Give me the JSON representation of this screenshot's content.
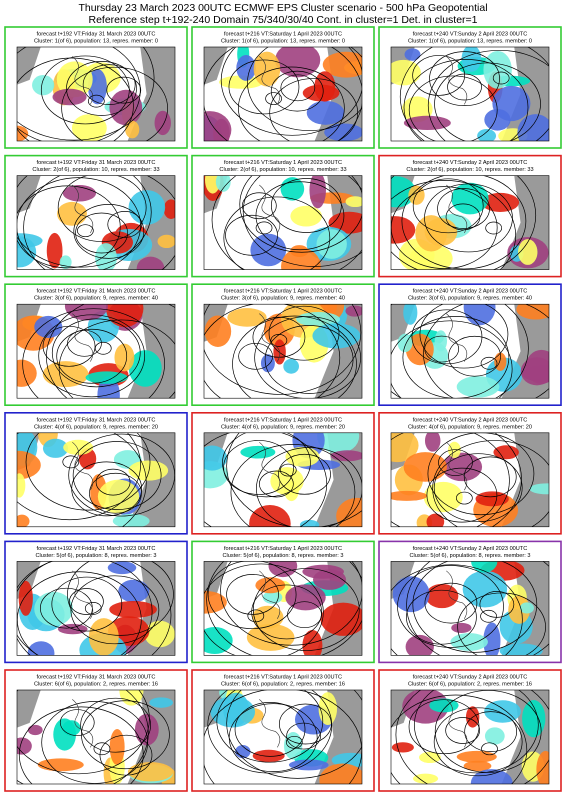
{
  "header": {
    "line1": "Thursday 23 March 2023 00UTC ECMWF EPS Cluster scenario - 500 hPa Geopotential",
    "line2": "Reference step t+192-240 Domain 75/340/30/40 Cont. in cluster=1 Det. in cluster=1"
  },
  "panels": [
    {
      "forecast": "forecast t+192 VT:Friday 31 March 2023 00UTC",
      "cluster": "Cluster: 1(of 6), population: 13, repres. member: 0",
      "border_color": "#33cc33"
    },
    {
      "forecast": "forecast t+216 VT:Saturday 1 April 2023 00UTC",
      "cluster": "Cluster: 1(of 6), population: 13, repres. member: 0",
      "border_color": "#33cc33"
    },
    {
      "forecast": "forecast t+240 VT:Sunday 2 April 2023 00UTC",
      "cluster": "Cluster: 1(of 6), population: 13, repres. member: 0",
      "border_color": "#33cc33"
    },
    {
      "forecast": "forecast t+192 VT:Friday 31 March 2023 00UTC",
      "cluster": "Cluster: 2(of 6), population: 10, repres. member: 33",
      "border_color": "#33cc33"
    },
    {
      "forecast": "forecast t+216 VT:Saturday 1 April 2023 00UTC",
      "cluster": "Cluster: 2(of 6), population: 10, repres. member: 33",
      "border_color": "#33cc33"
    },
    {
      "forecast": "forecast t+240 VT:Sunday 2 April 2023 00UTC",
      "cluster": "Cluster: 2(of 6), population: 10, repres. member: 33",
      "border_color": "#dd2222"
    },
    {
      "forecast": "forecast t+192 VT:Friday 31 March 2023 00UTC",
      "cluster": "Cluster: 3(of 6), population: 9, repres. member: 40",
      "border_color": "#33cc33"
    },
    {
      "forecast": "forecast t+216 VT:Saturday 1 April 2023 00UTC",
      "cluster": "Cluster: 3(of 6), population: 9, repres. member: 40",
      "border_color": "#33cc33"
    },
    {
      "forecast": "forecast t+240 VT:Sunday 2 April 2023 00UTC",
      "cluster": "Cluster: 3(of 6), population: 9, repres. member: 40",
      "border_color": "#2222cc"
    },
    {
      "forecast": "forecast t+192 VT:Friday 31 March 2023 00UTC",
      "cluster": "Cluster: 4(of 6), population: 9, repres. member: 20",
      "border_color": "#2222cc"
    },
    {
      "forecast": "forecast t+216 VT:Saturday 1 April 2023 00UTC",
      "cluster": "Cluster: 4(of 6), population: 9, repres. member: 20",
      "border_color": "#dd2222"
    },
    {
      "forecast": "forecast t+240 VT:Sunday 2 April 2023 00UTC",
      "cluster": "Cluster: 4(of 6), population: 9, repres. member: 20",
      "border_color": "#dd2222"
    },
    {
      "forecast": "forecast t+192 VT:Friday 31 March 2023 00UTC",
      "cluster": "Cluster: 5(of 6), population: 8, repres. member: 3",
      "border_color": "#2222cc"
    },
    {
      "forecast": "forecast t+216 VT:Saturday 1 April 2023 00UTC",
      "cluster": "Cluster: 5(of 6), population: 8, repres. member: 3",
      "border_color": "#33cc33"
    },
    {
      "forecast": "forecast t+240 VT:Sunday 2 April 2023 00UTC",
      "cluster": "Cluster: 5(of 6), population: 8, repres. member: 3",
      "border_color": "#8833aa"
    },
    {
      "forecast": "forecast t+192 VT:Friday 31 March 2023 00UTC",
      "cluster": "Cluster: 6(of 6), population: 2, repres. member: 16",
      "border_color": "#dd2222"
    },
    {
      "forecast": "forecast t+216 VT:Saturday 1 April 2023 00UTC",
      "cluster": "Cluster: 6(of 6), population: 2, repres. member: 16",
      "border_color": "#dd2222"
    },
    {
      "forecast": "forecast t+240 VT:Sunday 2 April 2023 00UTC",
      "cluster": "Cluster: 6(of 6), population: 2, repres. member: 16",
      "border_color": "#dd2222"
    }
  ]
}
